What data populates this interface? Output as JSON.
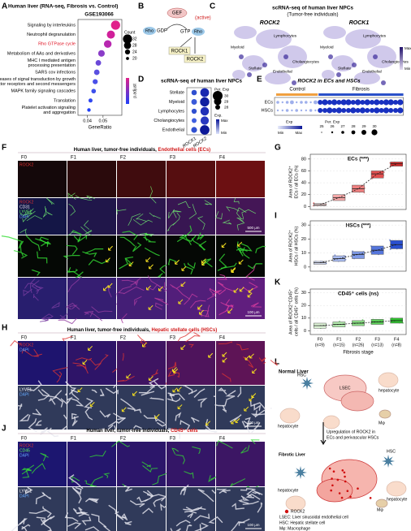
{
  "letters": {
    "A": "A",
    "B": "B",
    "C": "C",
    "D": "D",
    "E": "E",
    "F": "F",
    "G": "G",
    "I": "I",
    "K": "K",
    "H": "H",
    "J": "J",
    "L": "L"
  },
  "A": {
    "title": "Human liver (RNA-seq, Fibrosis vs. Control)",
    "dataset": "GSE193066",
    "pathways": [
      [
        "Signaling by interleukins"
      ],
      [
        "Neutrophil degranulation"
      ],
      [
        "Rho GTPase cycle"
      ],
      [
        "Metabolism of AAs and derivatives"
      ],
      [
        "MHC I mediated antigen",
        "processing presentation"
      ],
      [
        "SARS cov infections"
      ],
      [
        "Diseases of signal transduction by growth",
        "factor receptors and second messengers"
      ],
      [
        "MAPK family signaling cascades"
      ],
      [
        "Translation"
      ],
      [
        "Platelet activation signaling",
        "and aggregation"
      ]
    ],
    "label_colors": [
      "#000",
      "#000",
      "#e01020",
      "#000",
      "#000",
      "#000",
      "#000",
      "#000",
      "#000",
      "#000"
    ],
    "ratios": [
      0.058,
      0.055,
      0.053,
      0.049,
      0.047,
      0.046,
      0.045,
      0.044,
      0.042,
      0.041
    ],
    "counts": [
      32,
      30,
      29,
      27,
      25,
      25,
      24,
      23,
      22,
      21
    ],
    "dot_colors": [
      "#e0208a",
      "#d0209a",
      "#b828b0",
      "#8a3cc8",
      "#6a48d8",
      "#5a50e0",
      "#4a50e8",
      "#3c50ec",
      "#3048f0",
      "#2040f8"
    ],
    "xlabel": "GeneRatio",
    "xlim": [
      0.034,
      0.062
    ],
    "xticks": [
      0.04,
      0.05
    ],
    "count_title": "Count",
    "count_ticks": [
      32,
      28,
      24,
      20
    ],
    "padj_title": "p.adjust"
  },
  "B": {
    "gef": "GEF",
    "rho1": "Rho",
    "gdp": "GDP",
    "gtp": "GTP",
    "rho2": "Rho",
    "active": "(active)",
    "rock1": "ROCK1",
    "rock2": "ROCK2"
  },
  "C": {
    "title": [
      "scRNA-seq of human liver NPCs",
      "(Tumor-free individuals)"
    ],
    "genes": [
      "ROCK2",
      "ROCK1"
    ],
    "cells": [
      "Myeloid",
      "Lymphocytes",
      "Cholangiocytes",
      "Stellate",
      "Endothelial"
    ],
    "max": "Max",
    "min": "Min"
  },
  "D": {
    "title": "scRNA-seq of human liver NPCs",
    "rows": [
      "Stellate",
      "Myeloid",
      "Lymphocytes",
      "Cholangiocytes",
      "Endothelial"
    ],
    "cols": [
      "ROCK1",
      "ROCK2"
    ],
    "per_exp": [
      [
        28.2,
        29.6
      ],
      [
        28.3,
        29.8
      ],
      [
        28.1,
        29.5
      ],
      [
        28.0,
        29.4
      ],
      [
        28.4,
        29.9
      ]
    ],
    "colors": [
      [
        "#3050d0",
        "#1828b0"
      ],
      [
        "#3a5ad8",
        "#1020a0"
      ],
      [
        "#3050d0",
        "#2030b8"
      ],
      [
        "#4060e0",
        "#2838c0"
      ],
      [
        "#3050d0",
        "#0c1898"
      ]
    ],
    "per_title": "Per. Exp",
    "per_ticks": [
      30,
      29,
      28
    ],
    "exp_title": "Exp.",
    "max": "Max",
    "min": "Min"
  },
  "E": {
    "title": "ROCK2 in ECs and HSCs",
    "control": "Control",
    "fibrosis": "Fibrosis",
    "rows": [
      "ECs",
      "HSCs"
    ],
    "control_values": [
      [
        27,
        26,
        27,
        28,
        26,
        27,
        27,
        26,
        28
      ],
      [
        26,
        26,
        27,
        26,
        27,
        26,
        26,
        27,
        26
      ]
    ],
    "fibrosis_values": [
      [
        29,
        30,
        29,
        30,
        29,
        30,
        30,
        29,
        30,
        29,
        30,
        29,
        30,
        29,
        30,
        30,
        29,
        30
      ],
      [
        29,
        29,
        30,
        29,
        30,
        29,
        29,
        30,
        29,
        30,
        29,
        29,
        30,
        29,
        30,
        29,
        29,
        30
      ]
    ],
    "exp_title": "Exp",
    "min": "Min",
    "max": "Max",
    "per_title": "Per. Exp",
    "per_ticks": [
      25,
      26,
      27,
      28,
      29,
      30
    ]
  },
  "F": {
    "title": "Human liver, tumor-free individuals, ",
    "title_red": "Endothelial cells (ECs)",
    "stages": [
      "F0",
      "F1",
      "F2",
      "F3",
      "F4"
    ],
    "row1": [
      "ROCK2"
    ],
    "row2": [
      "ROCK2",
      "CD31",
      "LYVE1",
      "DAPI"
    ],
    "scale1": "500 μm",
    "scale2": "100 μm"
  },
  "H": {
    "title": "Human liver, tumor-free individuals, ",
    "title_red": "Hepatic stellate cells (HSCs)",
    "stages": [
      "F0",
      "F1",
      "F2",
      "F3",
      "F4"
    ],
    "row1": [
      "ROCK2",
      "DAPI"
    ],
    "row2": [
      "LYVE1",
      "DAPI"
    ],
    "scale": "100 μm"
  },
  "J": {
    "title": "Human liver, tumor-free individuals, ",
    "title_red": "CD45⁺ cells",
    "stages": [
      "F0",
      "F1",
      "F2",
      "F3",
      "F4"
    ],
    "row1": [
      "ROCK2",
      "CD45",
      "DAPI"
    ],
    "row2": [
      "LYVE1",
      "DAPI"
    ],
    "scale": "100 μm"
  },
  "G": {
    "title": "ECs (***)",
    "ylabel": [
      "Area of ROCK2⁺",
      "ECs / all ECs (%)"
    ],
    "ylim": [
      -5,
      88
    ],
    "yticks": [
      0,
      20,
      40,
      60,
      80
    ],
    "q1": [
      1,
      10,
      24,
      48,
      68
    ],
    "median": [
      3,
      15,
      30,
      55,
      72
    ],
    "q3": [
      5,
      20,
      36,
      60,
      75
    ],
    "colors": [
      "#fde0e0",
      "#f6a8a8",
      "#ee7f7f",
      "#e25050",
      "#d42a2a"
    ]
  },
  "I": {
    "title": "HSCs (***)",
    "ylabel": [
      "Area of ROCK2⁺",
      "HSCs / all HSCs (%)"
    ],
    "ylim": [
      -3,
      33
    ],
    "yticks": [
      0,
      10,
      20,
      30
    ],
    "q1": [
      2,
      4,
      6,
      9,
      13
    ],
    "median": [
      3,
      6,
      9,
      12,
      16
    ],
    "q3": [
      4,
      8,
      11,
      15,
      19
    ],
    "colors": [
      "#dde4fb",
      "#aabdf3",
      "#7f9ae8",
      "#5576dc",
      "#2a4fd0"
    ]
  },
  "K": {
    "title": "CD45⁺ cells (ns)",
    "ylabel": [
      "Area of ROCK2⁺CD45⁺",
      "cells / all CD45⁺ cells (%)"
    ],
    "ylim": [
      -3,
      33
    ],
    "yticks": [
      0,
      10,
      20,
      30
    ],
    "q1": [
      2,
      3,
      4,
      5,
      6
    ],
    "median": [
      4,
      5,
      6,
      7,
      8
    ],
    "q3": [
      6,
      7,
      8,
      9,
      10
    ],
    "colors": [
      "#dff5d8",
      "#b4ebae",
      "#8ade84",
      "#5dd05a",
      "#30c030"
    ],
    "stages": [
      "F0",
      "F1",
      "F2",
      "F3",
      "F4"
    ],
    "n": [
      "(n=9)",
      "(n=15)",
      "(n=26)",
      "(n=13)",
      "(n=8)"
    ],
    "xlabel": "Fibrosis stage"
  },
  "L": {
    "normal": "Normal Liver",
    "labels": [
      "HSC",
      "LSEC",
      "hepatocyte",
      "hepatocyte",
      "Mφ",
      "Upregulation of ROCK2 in",
      "ECs and  perivascular HSCs",
      "Fibrotic Liver",
      "HSC",
      "hepatocyte",
      "hepatocyte",
      "Mφ"
    ],
    "legend": [
      "ROCK2",
      "LSEC: Liver sinusoidal endothelial cell",
      "HSC: Hepatic stellate cell",
      "Mφ: Macrophage"
    ]
  }
}
